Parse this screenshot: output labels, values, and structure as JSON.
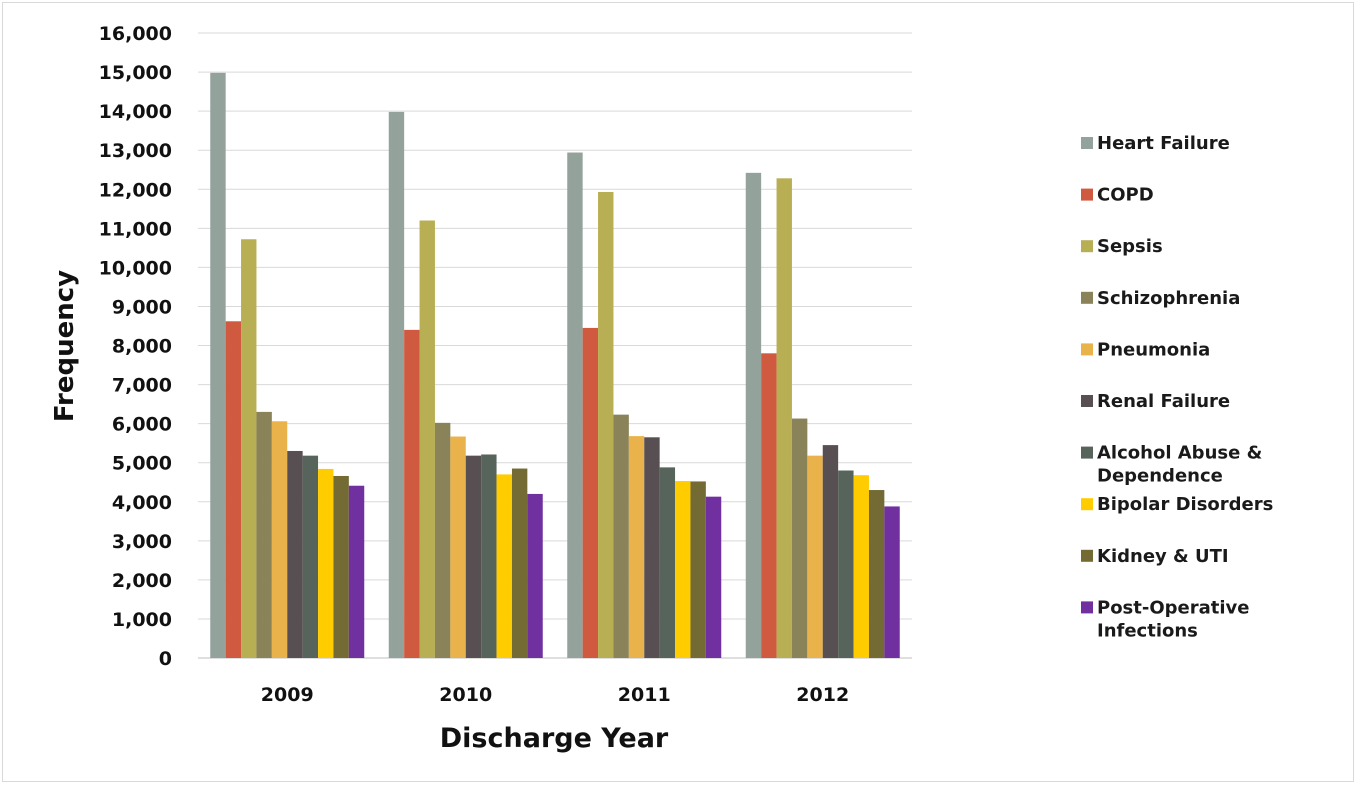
{
  "chart_data": {
    "type": "bar",
    "title": "",
    "xlabel": "Discharge Year",
    "ylabel": "Frequency",
    "ylim": [
      0,
      16000
    ],
    "ytick_step": 1000,
    "ytick_labels": [
      "0",
      "1,000",
      "2,000",
      "3,000",
      "4,000",
      "5,000",
      "6,000",
      "7,000",
      "8,000",
      "9,000",
      "10,000",
      "11,000",
      "12,000",
      "13,000",
      "14,000",
      "15,000",
      "16,000"
    ],
    "grid": true,
    "legend_position": "right",
    "categories": [
      "2009",
      "2010",
      "2011",
      "2012"
    ],
    "series": [
      {
        "name": "Heart Failure",
        "color": "#93a29a",
        "values": [
          14980,
          13980,
          12940,
          12420
        ]
      },
      {
        "name": "COPD",
        "color": "#d05a40",
        "values": [
          8620,
          8400,
          8450,
          7800
        ]
      },
      {
        "name": "Sepsis",
        "color": "#b8af54",
        "values": [
          10720,
          11200,
          11930,
          12280
        ]
      },
      {
        "name": "Schizophrenia",
        "color": "#8a8259",
        "values": [
          6300,
          6020,
          6230,
          6130
        ]
      },
      {
        "name": "Pneumonia",
        "color": "#e9b24a",
        "values": [
          6060,
          5670,
          5680,
          5180
        ]
      },
      {
        "name": "Renal Failure",
        "color": "#584f52",
        "values": [
          5300,
          5180,
          5650,
          5450
        ]
      },
      {
        "name": "Alcohol Abuse & Dependence",
        "color": "#56645c",
        "values": [
          5180,
          5210,
          4880,
          4800
        ]
      },
      {
        "name": "Bipolar Disorders",
        "color": "#ffcc00",
        "values": [
          4840,
          4700,
          4530,
          4680
        ]
      },
      {
        "name": "Kidney & UTI",
        "color": "#746b34",
        "values": [
          4660,
          4850,
          4520,
          4300
        ]
      },
      {
        "name": "Post-Operative Infections",
        "color": "#7030a0",
        "values": [
          4410,
          4200,
          4130,
          3880
        ]
      }
    ],
    "legend_lines": [
      [
        "Heart Failure"
      ],
      [
        "COPD"
      ],
      [
        "Sepsis"
      ],
      [
        "Schizophrenia"
      ],
      [
        "Pneumonia"
      ],
      [
        "Renal Failure"
      ],
      [
        "Alcohol Abuse &",
        "Dependence"
      ],
      [
        "Bipolar Disorders"
      ],
      [
        "Kidney & UTI"
      ],
      [
        "Post-Operative",
        "Infections"
      ]
    ],
    "colors": {
      "grid": "#d9d9d9",
      "axis": "#bfbfbf",
      "text": "#111111"
    }
  }
}
